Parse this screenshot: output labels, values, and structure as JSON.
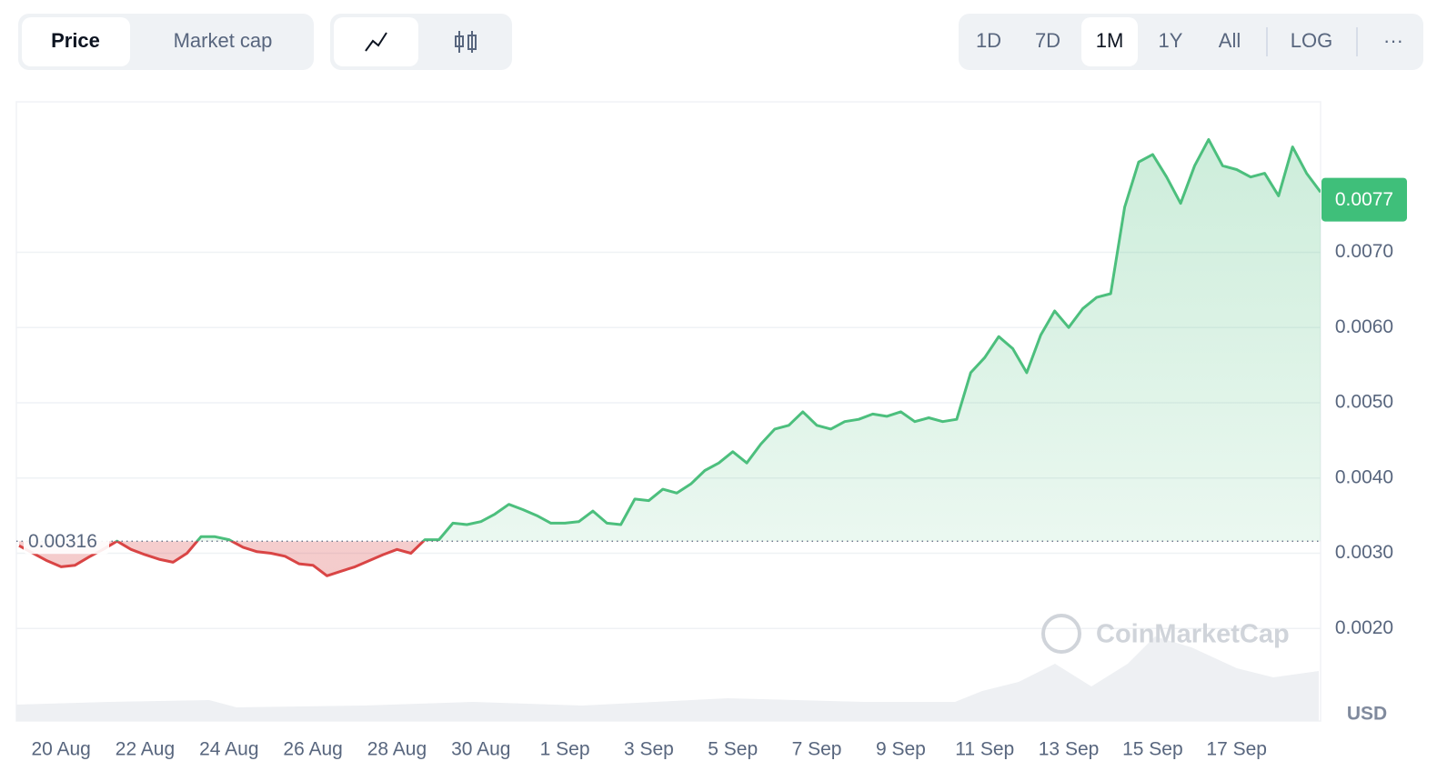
{
  "toolbar": {
    "metric_tabs": [
      "Price",
      "Market cap"
    ],
    "range_options": [
      "1D",
      "7D",
      "1M",
      "1Y",
      "All",
      "LOG"
    ],
    "more": "···"
  },
  "chart_data": {
    "type": "line",
    "categories": [
      null,
      null,
      null,
      "20 Aug",
      null,
      null,
      null,
      null,
      null,
      "22 Aug",
      null,
      null,
      null,
      null,
      null,
      "24 Aug",
      null,
      null,
      null,
      null,
      null,
      "26 Aug",
      null,
      null,
      null,
      null,
      null,
      "28 Aug",
      null,
      null,
      null,
      null,
      null,
      "30 Aug",
      null,
      null,
      null,
      null,
      null,
      "1 Sep",
      null,
      null,
      null,
      null,
      null,
      "3 Sep",
      null,
      null,
      null,
      null,
      null,
      "5 Sep",
      null,
      null,
      null,
      null,
      null,
      "7 Sep",
      null,
      null,
      null,
      null,
      null,
      "9 Sep",
      null,
      null,
      null,
      null,
      null,
      "11 Sep",
      null,
      null,
      null,
      null,
      null,
      "13 Sep",
      null,
      null,
      null,
      null,
      null,
      "15 Sep",
      null,
      null,
      null,
      null,
      null,
      "17 Sep",
      null,
      null,
      null,
      null,
      null,
      null
    ],
    "series": [
      {
        "color": "#4cbf7d",
        "below_color": "#d94545",
        "values": [
          0.0031,
          0.003,
          0.0029,
          0.00282,
          0.00284,
          0.00295,
          0.00305,
          0.00316,
          0.00305,
          0.00298,
          0.00292,
          0.00288,
          0.003,
          0.00322,
          0.00322,
          0.00318,
          0.00308,
          0.00302,
          0.003,
          0.00296,
          0.00286,
          0.00284,
          0.0027,
          0.00276,
          0.00282,
          0.0029,
          0.00298,
          0.00305,
          0.003,
          0.00318,
          0.00318,
          0.0034,
          0.00338,
          0.00342,
          0.00352,
          0.00365,
          0.00358,
          0.0035,
          0.0034,
          0.0034,
          0.00342,
          0.00356,
          0.0034,
          0.00338,
          0.00372,
          0.0037,
          0.00385,
          0.0038,
          0.00392,
          0.0041,
          0.0042,
          0.00435,
          0.0042,
          0.00445,
          0.00465,
          0.0047,
          0.00488,
          0.0047,
          0.00465,
          0.00475,
          0.00478,
          0.00485,
          0.00482,
          0.00488,
          0.00475,
          0.0048,
          0.00475,
          0.00478,
          0.0054,
          0.0056,
          0.00588,
          0.00572,
          0.0054,
          0.0059,
          0.00622,
          0.006,
          0.00625,
          0.0064,
          0.00645,
          0.0076,
          0.0082,
          0.0083,
          0.008,
          0.00765,
          0.00815,
          0.0085,
          0.00815,
          0.0081,
          0.008,
          0.00805,
          0.00775,
          0.0084,
          0.00805,
          0.0078
        ]
      }
    ],
    "ylim": [
      0.00077,
      0.009
    ],
    "yticks": [
      {
        "value": 0.002,
        "label": "0.0020"
      },
      {
        "value": 0.003,
        "label": "0.0030"
      },
      {
        "value": 0.004,
        "label": "0.0040"
      },
      {
        "value": 0.005,
        "label": "0.0050"
      },
      {
        "value": 0.006,
        "label": "0.0060"
      },
      {
        "value": 0.007,
        "label": "0.0070"
      }
    ],
    "grid": true,
    "baseline": 0.00316,
    "current_price": 0.0077,
    "current_price_color": "#3fbf7a",
    "currency": "USD",
    "watermark": "CoinMarketCap"
  }
}
